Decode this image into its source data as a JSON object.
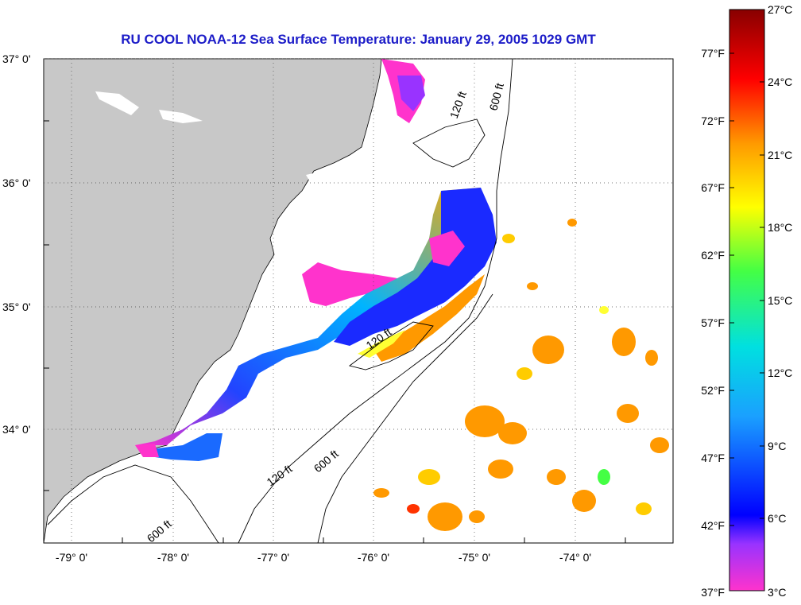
{
  "title": "RU COOL  NOAA-12  Sea Surface Temperature:  January 29, 2005 1029 GMT",
  "lat_labels": [
    "37° 0'",
    "36° 0'",
    "35° 0'",
    "34° 0'"
  ],
  "lon_labels": [
    "-79° 0'",
    "-78° 0'",
    "-77° 0'",
    "-76° 0'",
    "-75° 0'",
    "-74° 0'"
  ],
  "contour_labels": [
    "120 ft",
    "600 ft",
    "120 ft",
    "600 ft",
    "120 ft",
    "600 ft"
  ],
  "colorbar": {
    "fahrenheit": [
      "77°F",
      "72°F",
      "67°F",
      "62°F",
      "57°F",
      "52°F",
      "47°F",
      "42°F",
      "37°F"
    ],
    "celsius": [
      "27°C",
      "24°C",
      "21°C",
      "18°C",
      "15°C",
      "12°C",
      "9°C",
      "6°C",
      "3°C"
    ]
  },
  "colors": {
    "land": "#c8c8c8",
    "title": "#1c1cc8",
    "cold": "#ff33cc",
    "cool": "#1a1aff",
    "warm": "#ff9900",
    "hot": "#990000"
  }
}
